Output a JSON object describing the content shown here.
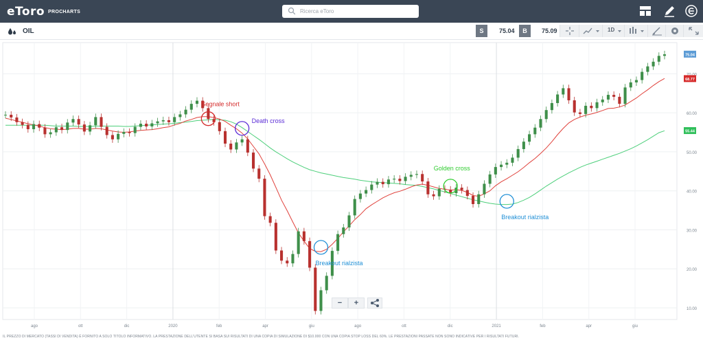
{
  "header": {
    "logo_text": "eToro",
    "logo_sub": "PROCHARTS",
    "search_placeholder": "Ricerca eToro",
    "icons": [
      "layout-icon",
      "pencil-icon",
      "etoro-e-icon"
    ]
  },
  "instrument": {
    "name": "OIL",
    "sell_label": "S",
    "sell_price": "75.04",
    "buy_label": "B",
    "buy_price": "75.09",
    "period": "1D",
    "toolbar_icons": [
      "crosshair-icon",
      "chart-type-icon",
      "indicators-icon",
      "draw-icon",
      "settings-icon",
      "fullscreen-icon"
    ]
  },
  "chart_data": {
    "type": "line",
    "title": "OIL",
    "x_ticks": [
      "ago",
      "ott",
      "dic",
      "2020",
      "feb",
      "apr",
      "giu",
      "ago",
      "ott",
      "dic",
      "2021",
      "feb",
      "apr",
      "giu"
    ],
    "y_ticks": [
      "10.00",
      "20.00",
      "30.00",
      "40.00",
      "50.00",
      "60.00",
      "70.00"
    ],
    "ylim": [
      7,
      78
    ],
    "price_badges": [
      {
        "value": "75.04",
        "color": "#5b9bd5"
      },
      {
        "value": "68.77",
        "color": "#d62b2b"
      },
      {
        "value": "55.44",
        "color": "#2fbf5a"
      }
    ],
    "series": [
      {
        "name": "Price",
        "color": "#3f8f4a",
        "values": [
          59.5,
          58.8,
          57.6,
          56.9,
          55.8,
          57.1,
          56.2,
          54.5,
          55.0,
          56.3,
          55.6,
          57.5,
          58.4,
          57.0,
          55.2,
          56.8,
          58.9,
          56.4,
          54.3,
          53.2,
          54.6,
          55.1,
          54.8,
          56.4,
          57.2,
          56.5,
          57.3,
          57.8,
          58.1,
          57.6,
          58.9,
          59.6,
          60.8,
          62.3,
          63.1,
          61.2,
          58.4,
          57.6,
          55.3,
          52.1,
          50.6,
          52.4,
          53.2,
          49.8,
          45.7,
          43.1,
          33.5,
          31.8,
          24.7,
          22.1,
          21.4,
          23.8,
          29.6,
          27.1,
          20.3,
          9.2,
          14.5,
          18.2,
          24.6,
          28.9,
          30.6,
          33.7,
          37.9,
          39.3,
          40.2,
          41.6,
          42.3,
          41.7,
          42.9,
          43.1,
          42.5,
          43.6,
          44.1,
          44.3,
          42.4,
          39.1,
          38.6,
          40.5,
          40.3,
          39.4,
          40.8,
          40.2,
          38.7,
          36.6,
          39.1,
          41.8,
          44.2,
          46.1,
          46.7,
          47.2,
          48.5,
          50.7,
          52.6,
          54.5,
          56.2,
          58.4,
          60.7,
          62.5,
          64.7,
          66.3,
          63.2,
          60.1,
          59.7,
          61.8,
          61.2,
          62.7,
          63.4,
          64.6,
          64.1,
          62.3,
          66.5,
          67.8,
          68.4,
          70.5,
          71.9,
          73.1,
          74.6,
          75.0
        ]
      },
      {
        "name": "Fast MA",
        "color": "#e0413b",
        "values": [
          58.6,
          58.3,
          57.9,
          57.6,
          57.2,
          56.9,
          56.6,
          56.2,
          55.9,
          55.8,
          55.7,
          55.8,
          56.0,
          56.0,
          55.8,
          55.8,
          56.0,
          55.9,
          55.6,
          55.3,
          55.1,
          55.0,
          55.1,
          55.3,
          55.5,
          55.6,
          55.7,
          55.9,
          56.2,
          56.4,
          56.9,
          57.3,
          57.9,
          58.3,
          58.8,
          59.0,
          59.0,
          58.8,
          58.4,
          57.8,
          56.8,
          55.9,
          54.8,
          53.3,
          51.4,
          49.5,
          46.9,
          44.1,
          40.9,
          37.6,
          34.9,
          32.0,
          29.2,
          27.1,
          25.2,
          24.5,
          24.4,
          25.0,
          26.3,
          27.8,
          29.5,
          31.0,
          32.6,
          33.9,
          35.4,
          36.4,
          37.3,
          38.2,
          38.9,
          39.5,
          39.9,
          40.4,
          41.0,
          41.5,
          41.7,
          41.4,
          41.0,
          40.6,
          40.4,
          40.2,
          40.3,
          40.1,
          39.6,
          38.8,
          38.6,
          39.2,
          40.0,
          41.3,
          42.3,
          43.1,
          44.0,
          44.9,
          46.0,
          47.2,
          48.3,
          49.6,
          51.0,
          52.6,
          54.4,
          56.0,
          57.4,
          58.3,
          58.9,
          59.4,
          59.7,
          60.1,
          60.6,
          61.1,
          61.2,
          61.5,
          62.0,
          62.9,
          63.8,
          64.9,
          65.9,
          67.0,
          68.0,
          68.8
        ]
      },
      {
        "name": "Slow MA",
        "color": "#4ccf7a",
        "values": [
          56.8,
          56.8,
          56.8,
          56.8,
          56.8,
          56.8,
          56.8,
          56.8,
          56.7,
          56.6,
          56.6,
          56.6,
          56.6,
          56.5,
          56.5,
          56.5,
          56.6,
          56.6,
          56.6,
          56.6,
          56.6,
          56.5,
          56.5,
          56.6,
          56.7,
          56.8,
          56.9,
          57.0,
          57.1,
          57.2,
          57.3,
          57.5,
          57.6,
          57.8,
          58.0,
          58.1,
          58.2,
          58.3,
          58.2,
          58.1,
          57.7,
          57.1,
          56.2,
          55.2,
          54.2,
          53.2,
          52.1,
          51.0,
          50.0,
          49.1,
          48.2,
          47.4,
          46.7,
          46.0,
          45.4,
          45.0,
          44.6,
          44.3,
          44.0,
          43.7,
          43.4,
          43.2,
          43.0,
          42.7,
          42.5,
          42.3,
          42.2,
          42.1,
          42.0,
          41.9,
          41.8,
          41.6,
          41.5,
          41.4,
          41.1,
          40.8,
          40.5,
          40.1,
          39.7,
          39.3,
          38.9,
          38.5,
          38.1,
          37.7,
          37.4,
          37.1,
          36.8,
          36.6,
          36.5,
          36.5,
          36.6,
          37.0,
          37.6,
          38.3,
          39.2,
          40.2,
          41.2,
          42.1,
          43.0,
          43.8,
          44.6,
          45.3,
          46.0,
          46.6,
          47.1,
          47.6,
          48.1,
          48.6,
          49.1,
          49.6,
          50.2,
          50.8,
          51.5,
          52.3,
          53.1,
          54.0,
          54.9,
          55.4
        ]
      }
    ],
    "annotations": [
      {
        "label": "Segnale short",
        "color": "#d42a2a",
        "index": 36,
        "value": 58.5
      },
      {
        "label": "Death cross",
        "color": "#5a2bd6",
        "index": 42,
        "value": 56.0
      },
      {
        "label": "Breakout rialzista",
        "color": "#1f8fd6",
        "index": 56,
        "value": 25.5
      },
      {
        "label": "Golden cross",
        "color": "#2fcc2f",
        "index": 79,
        "value": 41.2
      },
      {
        "label": "Breakout rialzista",
        "color": "#1f8fd6",
        "index": 89,
        "value": 37.3
      }
    ]
  },
  "zoom_controls": {
    "minus": "−",
    "plus": "+"
  },
  "disclaimer": "IL PREZZO DI MERCATO (TASSI DI VENDITA) È FORNITO A SOLO TITOLO INFORMATIVO. LA PRESTAZIONE DELL'UTENTE SI BASA SUI RISULTATI DI UNA COPIA DI SIMULAZIONE DI $10.000 CON UNA COPIA STOP LOSS DEL 60%. LE PRESTAZIONI PASSATE NON SONO INDICATIVE PER I RISULTATI FUTURI."
}
